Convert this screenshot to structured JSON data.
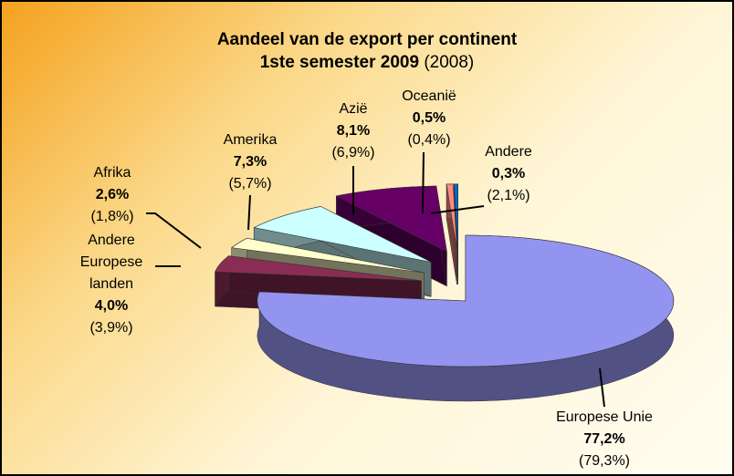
{
  "chart_data": {
    "type": "pie3d",
    "title": "Aandeel van de export per continent",
    "categories": [
      "Europese Unie",
      "Andere Europese landen",
      "Afrika",
      "Amerika",
      "Azië",
      "Oceanië",
      "Andere"
    ],
    "colors": [
      "#9393f0",
      "#8a2d55",
      "#ffffcc",
      "#ccffff",
      "#660066",
      "#ff8a80",
      "#0a66c8"
    ],
    "series": [
      {
        "name": "1ste semester 2009",
        "values": [
          77.2,
          4.0,
          2.6,
          7.3,
          8.1,
          0.5,
          0.3
        ],
        "value_labels": [
          "77,2%",
          "4,0%",
          "2,6%",
          "7,3%",
          "8,1%",
          "0,5%",
          "0,3%"
        ]
      },
      {
        "name": "(2008)",
        "values": [
          79.3,
          3.9,
          1.8,
          5.7,
          6.9,
          0.4,
          2.1
        ],
        "value_labels": [
          "(79,3%)",
          "(3,9%)",
          "(1,8%)",
          "(5,7%)",
          "(6,9%)",
          "(0,4%)",
          "(2,1%)"
        ]
      }
    ]
  }
}
